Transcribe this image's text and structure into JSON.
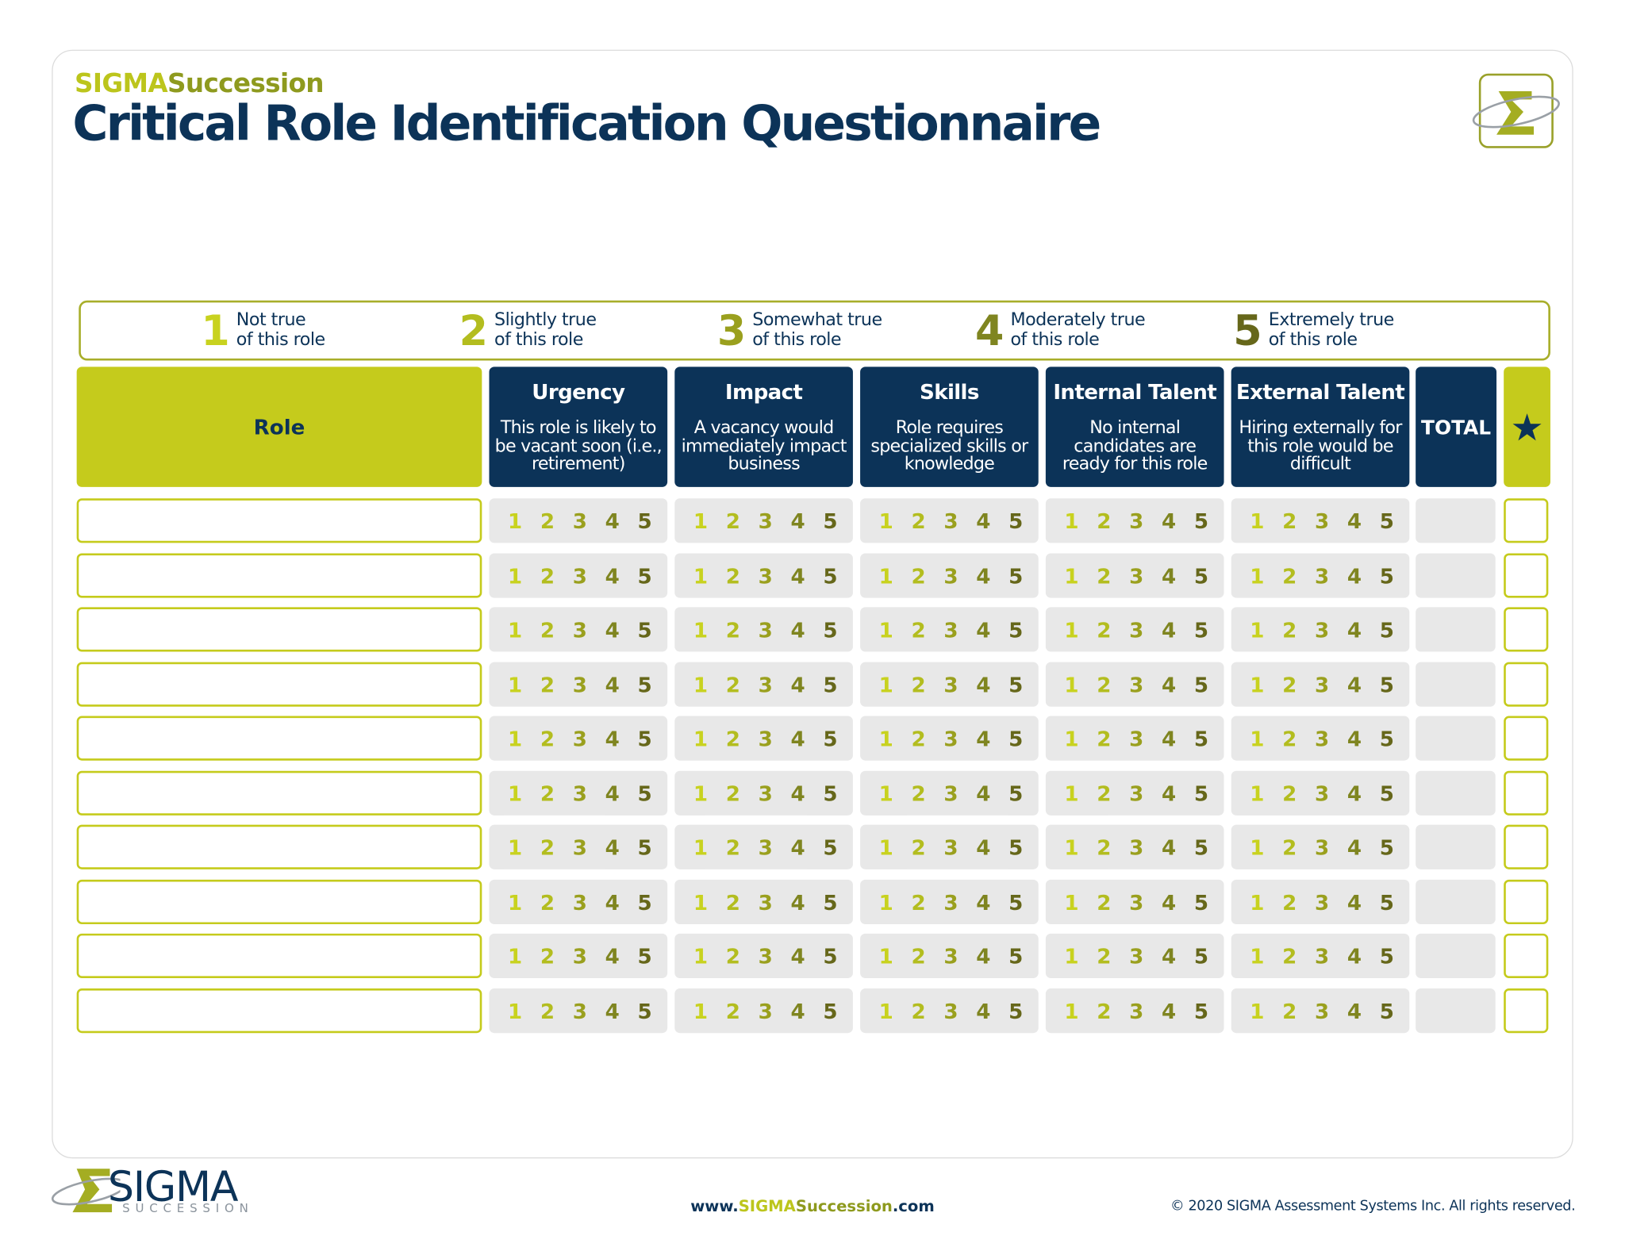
{
  "header": {
    "brand": [
      "SIGMA",
      "Succession"
    ],
    "title": "Critical Role Identification Questionnaire"
  },
  "scale": [
    {
      "number": "1",
      "text": [
        "Not true",
        "of this role"
      ]
    },
    {
      "number": "2",
      "text": [
        "Slightly true",
        "of this role"
      ]
    },
    {
      "number": "3",
      "text": [
        "Somewhat true",
        "of this role"
      ]
    },
    {
      "number": "4",
      "text": [
        "Moderately true",
        "of this role"
      ]
    },
    {
      "number": "5",
      "text": [
        "Extremely true",
        "of this role"
      ]
    }
  ],
  "table": {
    "role_header": "Role",
    "criteria": [
      {
        "name": "Urgency",
        "description": [
          "This role is likely to",
          "be vacant soon (i.e.,",
          "retirement)"
        ]
      },
      {
        "name": "Impact",
        "description": [
          "A vacancy would",
          "immediately impact",
          "business"
        ]
      },
      {
        "name": "Skills",
        "description": [
          "Role requires",
          "specialized skills or",
          "knowledge"
        ]
      },
      {
        "name": "Internal Talent",
        "description": [
          "No internal",
          "candidates are",
          "ready for this role"
        ]
      },
      {
        "name": "External Talent",
        "description": [
          "Hiring externally for",
          "this role would be",
          "difficult"
        ]
      }
    ],
    "total_header": "TOTAL"
  },
  "footer": {
    "logo": [
      "SIGMA",
      "SUCCESSION"
    ],
    "url": [
      "www.",
      "SIGMA",
      "Succession",
      ".com"
    ],
    "copyright": "© 2020 SIGMA Assessment Systems Inc. All rights reserved."
  }
}
